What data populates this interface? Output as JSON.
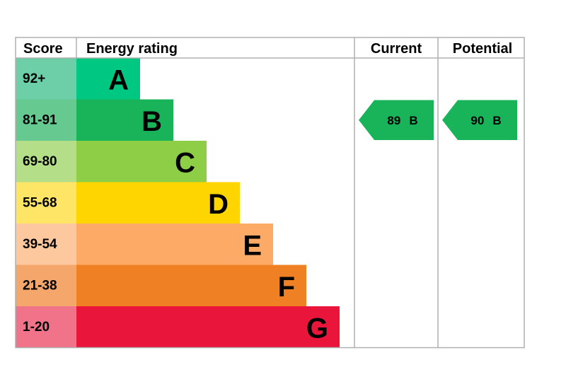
{
  "header": {
    "score": "Score",
    "rating": "Energy rating",
    "current": "Current",
    "potential": "Potential"
  },
  "bands": [
    {
      "score": "92+",
      "letter": "A",
      "color": "#00c781",
      "score_color": "#6dcfa8"
    },
    {
      "score": "81-91",
      "letter": "B",
      "color": "#19b459",
      "score_color": "#66c98f"
    },
    {
      "score": "69-80",
      "letter": "C",
      "color": "#8dce46",
      "score_color": "#b4df88"
    },
    {
      "score": "55-68",
      "letter": "D",
      "color": "#ffd500",
      "score_color": "#ffe566"
    },
    {
      "score": "39-54",
      "letter": "E",
      "color": "#fcaa65",
      "score_color": "#fdc89d"
    },
    {
      "score": "21-38",
      "letter": "F",
      "color": "#ef8023",
      "score_color": "#f4a66b"
    },
    {
      "score": "1-20",
      "letter": "G",
      "color": "#e9153b",
      "score_color": "#f0738a"
    }
  ],
  "current": {
    "value": 89,
    "band": "B"
  },
  "potential": {
    "value": 90,
    "band": "B"
  }
}
